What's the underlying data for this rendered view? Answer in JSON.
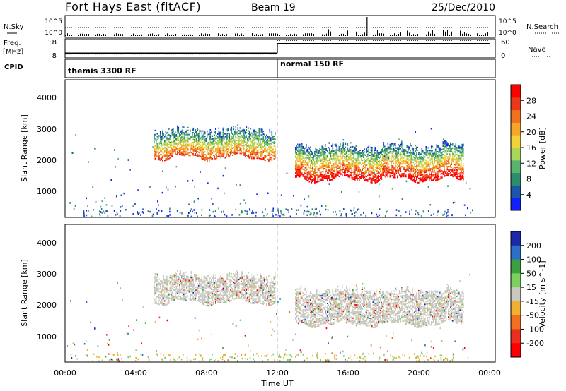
{
  "header": {
    "station": "Fort Hays East (fitACF)",
    "beam": "Beam 19",
    "date": "25/Dec/2010"
  },
  "summary_panel": {
    "left_labels": [
      "N.Sky",
      "Freq.",
      "[MHz]",
      "CPID"
    ],
    "right_labels": [
      "N.Search",
      "Nave"
    ],
    "nsky_ticks": [
      "10^5",
      "10^0"
    ],
    "nsearch_ticks": [
      "10^5",
      "10^0"
    ],
    "freq_ticks": [
      "18",
      "8"
    ],
    "nave_ticks": [
      "60",
      "0"
    ],
    "cpid": [
      {
        "label": "themis 3300 RF",
        "start_hour": 0,
        "end_hour": 12
      },
      {
        "label": "normal 150 RF",
        "start_hour": 12,
        "end_hour": 24
      }
    ],
    "freq_mhz": [
      {
        "start_hour": 0,
        "end_hour": 12,
        "value": 10.5
      },
      {
        "start_hour": 12,
        "end_hour": 24,
        "value": 15.5
      }
    ],
    "nave": [
      {
        "start_hour": 0,
        "end_hour": 12,
        "value": 12
      },
      {
        "start_hour": 12,
        "end_hour": 24,
        "value": 55
      }
    ]
  },
  "chart_data": [
    {
      "type": "heatmap",
      "title": "Power",
      "xlabel": "",
      "ylabel": "Slant Range [km]",
      "xlim_hours": [
        0,
        24
      ],
      "ylim": [
        200,
        4600
      ],
      "y_ticks": [
        "1000",
        "2000",
        "3000",
        "4000"
      ],
      "colorbar": {
        "label": "Power [dB]",
        "ticks": [
          "4",
          "8",
          "12",
          "16",
          "20",
          "24",
          "28"
        ],
        "colors": [
          "#1020ff",
          "#1d55a8",
          "#2d8c6a",
          "#58b46c",
          "#a8d65a",
          "#f2d23a",
          "#f5a52a",
          "#f07020",
          "#e83a18",
          "#ff0000"
        ]
      },
      "regions": [
        {
          "start_hour": 5.0,
          "end_hour": 11.9,
          "lower_km": 2100,
          "upper_km": 2900,
          "peak_db": 22
        },
        {
          "start_hour": 13.0,
          "end_hour": 22.5,
          "lower_km": 1400,
          "upper_km": 2400,
          "peak_db": 30
        }
      ]
    },
    {
      "type": "heatmap",
      "title": "Velocity",
      "xlabel": "Time UT",
      "ylabel": "Slant Range [km]",
      "xlim_hours": [
        0,
        24
      ],
      "ylim": [
        200,
        4600
      ],
      "y_ticks": [
        "1000",
        "2000",
        "3000",
        "4000"
      ],
      "x_ticks": [
        "00:00",
        "04:00",
        "08:00",
        "12:00",
        "16:00",
        "20:00",
        "00:00"
      ],
      "colorbar": {
        "label": "Velocity [m s^-1]",
        "ticks": [
          "200",
          "100",
          "50",
          "15",
          "-15",
          "-50",
          "-100",
          "-200"
        ],
        "colors": [
          "#1a2aa8",
          "#2d6fc8",
          "#3aa040",
          "#7cd060",
          "#c8c8c0",
          "#f0b030",
          "#f07020",
          "#e83020",
          "#ff0000"
        ]
      },
      "regions": [
        {
          "start_hour": 5.0,
          "end_hour": 11.9,
          "lower_km": 2100,
          "upper_km": 2900,
          "dominant": "ground scatter"
        },
        {
          "start_hour": 13.0,
          "end_hour": 22.5,
          "lower_km": 1400,
          "upper_km": 2400,
          "dominant": "ground scatter"
        }
      ]
    }
  ]
}
